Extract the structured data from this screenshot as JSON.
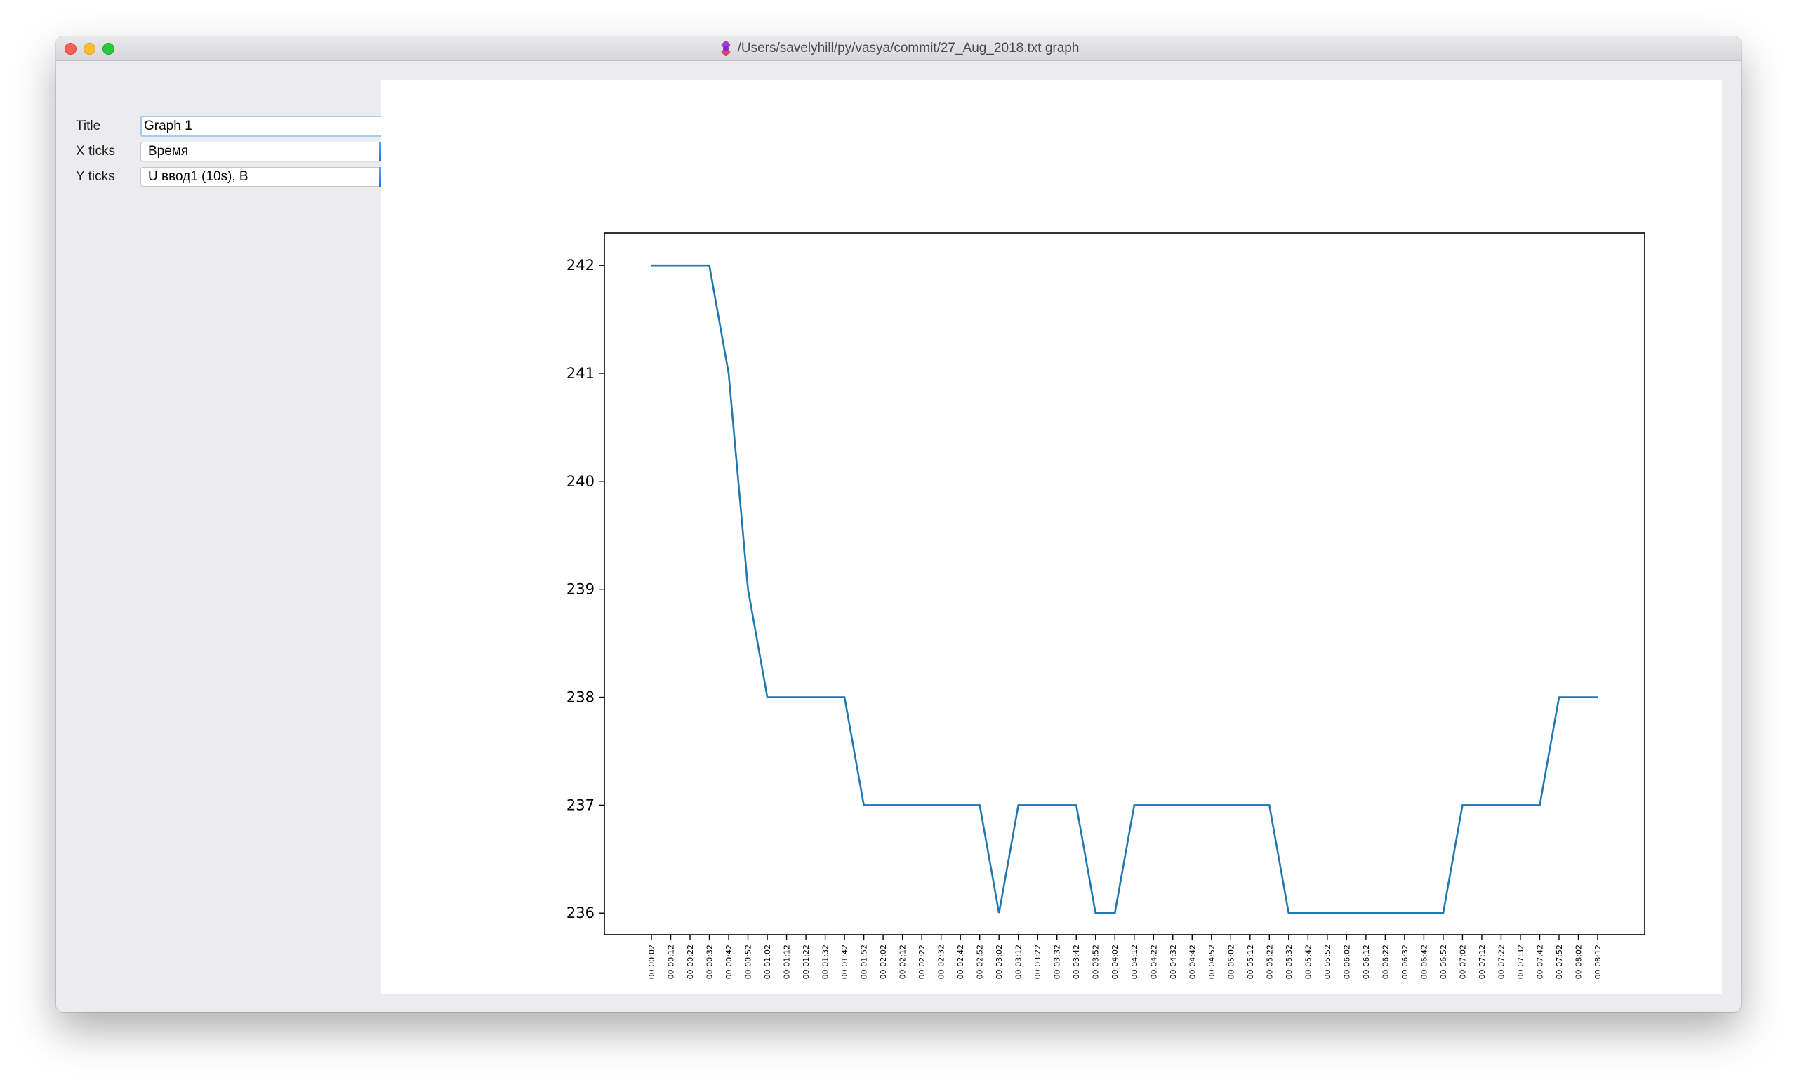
{
  "window": {
    "title": "/Users/savelyhill/py/vasya/commit/27_Aug_2018.txt graph"
  },
  "form": {
    "title_label": "Title",
    "title_value": "Graph 1",
    "xticks_label": "X ticks",
    "xticks_value": "Время",
    "yticks_label": "Y ticks",
    "yticks_value": "U ввод1 (10s), В"
  },
  "chart_data": {
    "type": "line",
    "title": "",
    "xlabel": "",
    "ylabel": "",
    "ylim": [
      235.8,
      242.3
    ],
    "yticks": [
      236,
      237,
      238,
      239,
      240,
      241,
      242
    ],
    "x": [
      "00:00:02",
      "00:00:12",
      "00:00:22",
      "00:00:32",
      "00:00:42",
      "00:00:52",
      "00:01:02",
      "00:01:12",
      "00:01:22",
      "00:01:32",
      "00:01:42",
      "00:01:52",
      "00:02:02",
      "00:02:12",
      "00:02:22",
      "00:02:32",
      "00:02:42",
      "00:02:52",
      "00:03:02",
      "00:03:12",
      "00:03:22",
      "00:03:32",
      "00:03:42",
      "00:03:52",
      "00:04:02",
      "00:04:12",
      "00:04:22",
      "00:04:32",
      "00:04:42",
      "00:04:52",
      "00:05:02",
      "00:05:12",
      "00:05:22",
      "00:05:32",
      "00:05:42",
      "00:05:52",
      "00:06:02",
      "00:06:12",
      "00:06:22",
      "00:06:32",
      "00:06:42",
      "00:06:52",
      "00:07:02",
      "00:07:12",
      "00:07:22",
      "00:07:32",
      "00:07:42",
      "00:07:52",
      "00:08:02",
      "00:08:12"
    ],
    "series": [
      {
        "color": "#1f77b4",
        "values": [
          242,
          242,
          242,
          242,
          241,
          239,
          238,
          238,
          238,
          238,
          238,
          237,
          237,
          237,
          237,
          237,
          237,
          237,
          236,
          237,
          237,
          237,
          237,
          236,
          236,
          237,
          237,
          237,
          237,
          237,
          237,
          237,
          237,
          236,
          236,
          236,
          236,
          236,
          236,
          236,
          236,
          236,
          237,
          237,
          237,
          237,
          237,
          238,
          238,
          238
        ]
      }
    ],
    "grid": false,
    "legend": "none"
  }
}
